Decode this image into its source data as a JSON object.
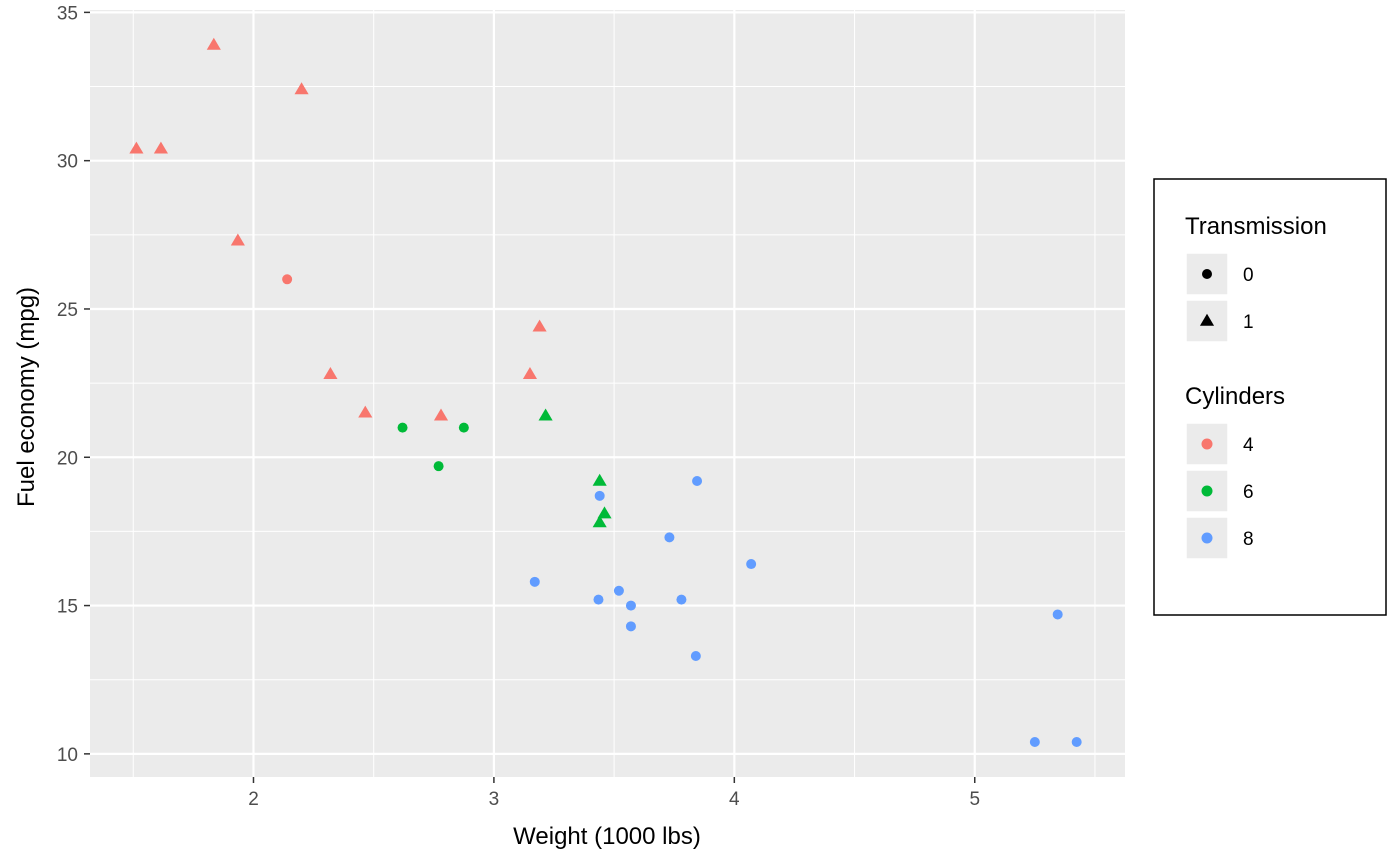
{
  "chart_data": {
    "type": "scatter",
    "xlabel": "Weight (1000 lbs)",
    "ylabel": "Fuel economy (mpg)",
    "xlim": [
      1.32,
      5.625
    ],
    "ylim": [
      9.22,
      35.08
    ],
    "x_ticks": [
      2,
      3,
      4,
      5
    ],
    "x_tick_labels": [
      "2",
      "3",
      "4",
      "5"
    ],
    "y_ticks": [
      10,
      15,
      20,
      25,
      30,
      35
    ],
    "y_tick_labels": [
      "10",
      "15",
      "20",
      "25",
      "30",
      "35"
    ],
    "x_minor_ticks": [
      1.5,
      2.5,
      3.5,
      4.5,
      5.5
    ],
    "y_minor_ticks": [
      12.5,
      17.5,
      22.5,
      27.5,
      32.5
    ],
    "grid": true,
    "background": "#ebebeb",
    "colors": {
      "4": "#f8766d",
      "6": "#00ba38",
      "8": "#619cff"
    },
    "legends": [
      {
        "title": "Transmission",
        "placement": "right",
        "entries": [
          {
            "label": "0",
            "shape": "circle"
          },
          {
            "label": "1",
            "shape": "triangle"
          }
        ]
      },
      {
        "title": "Cylinders",
        "placement": "right",
        "entries": [
          {
            "label": "4",
            "color": "#f8766d"
          },
          {
            "label": "6",
            "color": "#00ba38"
          },
          {
            "label": "8",
            "color": "#619cff"
          }
        ]
      }
    ],
    "points": [
      {
        "x": 1.513,
        "y": 30.4,
        "cyl": "4",
        "am": "1"
      },
      {
        "x": 1.615,
        "y": 30.4,
        "cyl": "4",
        "am": "1"
      },
      {
        "x": 1.835,
        "y": 33.9,
        "cyl": "4",
        "am": "1"
      },
      {
        "x": 1.935,
        "y": 27.3,
        "cyl": "4",
        "am": "1"
      },
      {
        "x": 2.2,
        "y": 32.4,
        "cyl": "4",
        "am": "1"
      },
      {
        "x": 2.32,
        "y": 22.8,
        "cyl": "4",
        "am": "1"
      },
      {
        "x": 2.465,
        "y": 21.5,
        "cyl": "4",
        "am": "1"
      },
      {
        "x": 2.78,
        "y": 21.4,
        "cyl": "4",
        "am": "1"
      },
      {
        "x": 3.15,
        "y": 22.8,
        "cyl": "4",
        "am": "1"
      },
      {
        "x": 3.19,
        "y": 24.4,
        "cyl": "4",
        "am": "1"
      },
      {
        "x": 2.14,
        "y": 26.0,
        "cyl": "4",
        "am": "0"
      },
      {
        "x": 2.62,
        "y": 21.0,
        "cyl": "6",
        "am": "0"
      },
      {
        "x": 2.875,
        "y": 21.0,
        "cyl": "6",
        "am": "0"
      },
      {
        "x": 2.77,
        "y": 19.7,
        "cyl": "6",
        "am": "0"
      },
      {
        "x": 3.215,
        "y": 21.4,
        "cyl": "6",
        "am": "1"
      },
      {
        "x": 3.44,
        "y": 19.2,
        "cyl": "6",
        "am": "1"
      },
      {
        "x": 3.46,
        "y": 18.1,
        "cyl": "6",
        "am": "1"
      },
      {
        "x": 3.44,
        "y": 17.8,
        "cyl": "6",
        "am": "1"
      },
      {
        "x": 3.44,
        "y": 18.7,
        "cyl": "8",
        "am": "0"
      },
      {
        "x": 3.845,
        "y": 19.2,
        "cyl": "8",
        "am": "0"
      },
      {
        "x": 3.73,
        "y": 17.3,
        "cyl": "8",
        "am": "0"
      },
      {
        "x": 4.07,
        "y": 16.4,
        "cyl": "8",
        "am": "0"
      },
      {
        "x": 3.17,
        "y": 15.8,
        "cyl": "8",
        "am": "0"
      },
      {
        "x": 3.435,
        "y": 15.2,
        "cyl": "8",
        "am": "0"
      },
      {
        "x": 3.52,
        "y": 15.5,
        "cyl": "8",
        "am": "0"
      },
      {
        "x": 3.57,
        "y": 15.0,
        "cyl": "8",
        "am": "0"
      },
      {
        "x": 3.78,
        "y": 15.2,
        "cyl": "8",
        "am": "0"
      },
      {
        "x": 3.57,
        "y": 14.3,
        "cyl": "8",
        "am": "0"
      },
      {
        "x": 3.84,
        "y": 13.3,
        "cyl": "8",
        "am": "0"
      },
      {
        "x": 5.345,
        "y": 14.7,
        "cyl": "8",
        "am": "0"
      },
      {
        "x": 5.25,
        "y": 10.4,
        "cyl": "8",
        "am": "0"
      },
      {
        "x": 5.424,
        "y": 10.4,
        "cyl": "8",
        "am": "0"
      }
    ]
  }
}
